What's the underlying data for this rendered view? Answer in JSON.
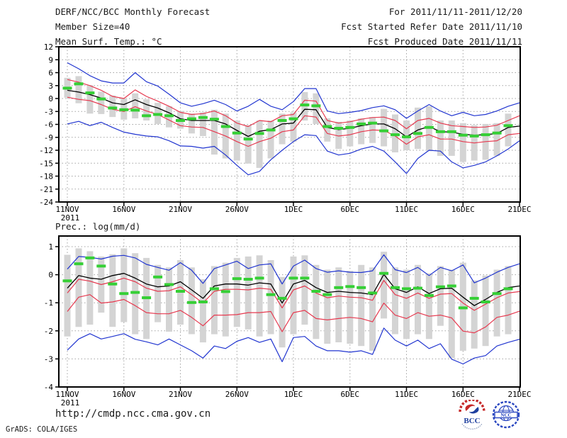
{
  "header": {
    "left": [
      "DERF/NCC/BCC Monthly Forecast",
      "Member Size=40"
    ],
    "right": [
      "For 2011/11/11-2011/12/20",
      "Fcst Started Refer Date 2011/11/10",
      "Fcst Produced Date 2011/11/11"
    ]
  },
  "footer": {
    "url": "http://cmdp.ncc.cma.gov.cn",
    "credit": "GrADS: COLA/IGES",
    "logos": [
      {
        "label": "BCC"
      },
      {
        "label": "NCC"
      }
    ]
  },
  "colors": {
    "blue": "#2135d0",
    "red": "#e6394f",
    "green": "#35cf35",
    "bar": "#d4d4d4",
    "grid": "#a3a3a3",
    "frame": "#000000"
  },
  "chart_data": [
    {
      "type": "line",
      "title": "Mean Surf. Temp.: °C",
      "ylabel": "Mean Surf. Temp. (°C)",
      "ymax": 12,
      "ymin": -24,
      "yticks": [
        12,
        9,
        6,
        3,
        0,
        -3,
        -6,
        -9,
        -12,
        -15,
        -18,
        -21,
        -24
      ],
      "grid": "dotted",
      "year_label": "2011",
      "xticks": [
        {
          "day": 1,
          "label": "11NOV"
        },
        {
          "day": 6,
          "label": "16NOV"
        },
        {
          "day": 11,
          "label": "21NOV"
        },
        {
          "day": 16,
          "label": "26NOV"
        },
        {
          "day": 21,
          "label": "1DEC"
        },
        {
          "day": 26,
          "label": "6DEC"
        },
        {
          "day": 31,
          "label": "11DEC"
        },
        {
          "day": 36,
          "label": "16DEC"
        },
        {
          "day": 41,
          "label": "21DEC"
        }
      ],
      "series": [
        {
          "name": "blue-upper-envelope",
          "color": "#2135d0",
          "width": 1.2,
          "values": [
            8.3,
            6.9,
            5.3,
            4.1,
            3.6,
            3.6,
            6.0,
            3.9,
            2.9,
            1.0,
            -1.0,
            -1.8,
            -1.2,
            -0.4,
            -1.4,
            -2.9,
            -1.8,
            -0.2,
            -1.8,
            -2.6,
            -0.7,
            2.3,
            2.3,
            -2.9,
            -3.5,
            -3.2,
            -2.8,
            -2.1,
            -1.7,
            -2.6,
            -4.6,
            -2.9,
            -1.4,
            -2.9,
            -4.0,
            -3.2,
            -4.0,
            -3.7,
            -2.9,
            -1.8,
            -1.0
          ]
        },
        {
          "name": "blue-lower-envelope",
          "color": "#2135d0",
          "width": 1.2,
          "values": [
            -5.9,
            -5.3,
            -6.3,
            -5.5,
            -6.7,
            -7.8,
            -8.3,
            -8.7,
            -8.9,
            -9.8,
            -11.0,
            -11.1,
            -11.5,
            -11.1,
            -13.1,
            -15.5,
            -17.7,
            -16.9,
            -14.2,
            -12.0,
            -10.0,
            -8.4,
            -8.6,
            -12.2,
            -13.1,
            -12.7,
            -11.7,
            -11.1,
            -12.2,
            -14.7,
            -17.4,
            -13.9,
            -12.0,
            -12.2,
            -14.7,
            -16.1,
            -15.5,
            -14.7,
            -13.3,
            -11.7,
            -9.8
          ]
        },
        {
          "name": "red-upper-spread",
          "color": "#e6394f",
          "width": 1.2,
          "values": [
            4.4,
            3.8,
            3.0,
            1.9,
            0.5,
            0.0,
            2.0,
            0.5,
            -0.6,
            -1.8,
            -3.2,
            -3.7,
            -3.5,
            -2.9,
            -4.0,
            -5.7,
            -6.5,
            -5.1,
            -5.4,
            -4.0,
            -3.7,
            -0.4,
            -0.6,
            -5.1,
            -5.7,
            -5.4,
            -4.8,
            -4.4,
            -4.3,
            -5.1,
            -7.0,
            -5.1,
            -4.6,
            -5.7,
            -6.3,
            -6.5,
            -6.7,
            -6.6,
            -6.2,
            -5.1,
            -4.0
          ]
        },
        {
          "name": "red-lower-spread",
          "color": "#e6394f",
          "width": 1.2,
          "values": [
            0.3,
            -0.2,
            -0.5,
            -1.4,
            -2.5,
            -3.0,
            -1.9,
            -2.9,
            -3.7,
            -5.0,
            -6.3,
            -6.6,
            -6.7,
            -7.7,
            -8.7,
            -10.0,
            -11.1,
            -10.0,
            -9.2,
            -7.7,
            -7.3,
            -4.0,
            -4.3,
            -8.1,
            -8.7,
            -8.4,
            -7.7,
            -7.3,
            -7.4,
            -8.7,
            -10.6,
            -8.9,
            -8.4,
            -9.4,
            -9.4,
            -10.0,
            -10.3,
            -10.0,
            -9.8,
            -8.4,
            -8.1
          ]
        },
        {
          "name": "ensemble-mean",
          "color": "#000000",
          "width": 1.3,
          "values": [
            1.9,
            1.5,
            0.9,
            0.1,
            -1.0,
            -1.4,
            -0.3,
            -1.4,
            -2.2,
            -3.3,
            -4.7,
            -5.1,
            -5.1,
            -5.1,
            -5.9,
            -7.4,
            -8.8,
            -7.6,
            -7.2,
            -5.9,
            -5.7,
            -2.5,
            -2.6,
            -6.7,
            -7.2,
            -6.9,
            -6.3,
            -5.9,
            -5.9,
            -7.0,
            -8.9,
            -7.3,
            -6.5,
            -7.7,
            -7.8,
            -8.3,
            -8.5,
            -8.4,
            -8.1,
            -6.7,
            -6.4
          ]
        }
      ],
      "bars": {
        "name": "member-spread-bar",
        "color": "#d4d4d4",
        "top": [
          4.8,
          5.2,
          3.1,
          1.6,
          0.7,
          0.0,
          1.2,
          -0.2,
          -1.0,
          -1.8,
          -2.9,
          -3.5,
          -3.2,
          -2.6,
          -3.5,
          -5.1,
          -6.2,
          -5.1,
          -5.1,
          -3.5,
          -3.2,
          1.5,
          1.2,
          -4.6,
          -5.4,
          -5.1,
          -4.6,
          -4.3,
          -2.4,
          -3.7,
          -5.1,
          -2.1,
          -1.8,
          -5.1,
          -5.1,
          -5.7,
          -6.2,
          -5.9,
          -5.7,
          -3.5
        ],
        "bottom": [
          0.2,
          -1.1,
          -3.5,
          -3.6,
          -4.3,
          -4.9,
          -4.6,
          -5.1,
          -5.9,
          -6.7,
          -7.0,
          -8.1,
          -8.7,
          -13.0,
          -13.9,
          -14.4,
          -15.1,
          -16.1,
          -13.9,
          -10.6,
          -10.0,
          -5.1,
          -5.9,
          -10.0,
          -11.7,
          -11.1,
          -10.6,
          -10.3,
          -11.1,
          -12.5,
          -12.0,
          -11.7,
          -12.2,
          -13.3,
          -13.3,
          -14.7,
          -14.4,
          -14.2,
          -13.3,
          -11.1
        ]
      },
      "dashes": {
        "name": "green-dash-marks",
        "color": "#35cf35",
        "values": [
          2.4,
          3.4,
          1.3,
          -0.1,
          -2.2,
          -2.6,
          -2.7,
          -4.0,
          -3.7,
          -4.0,
          -5.1,
          -4.7,
          -4.4,
          -4.8,
          -6.5,
          -8.0,
          -9.4,
          -8.1,
          -7.3,
          -5.1,
          -4.7,
          -1.5,
          -1.7,
          -6.5,
          -6.9,
          -6.7,
          -5.9,
          -5.7,
          -7.5,
          -8.4,
          -8.9,
          -8.1,
          -6.7,
          -7.7,
          -7.7,
          -8.5,
          -8.7,
          -8.4,
          -8.0,
          -6.3
        ]
      }
    },
    {
      "type": "line",
      "title": "Prec.: log(mm/d)",
      "ylabel": "Prec. log(mm/d)",
      "ymax": 1.38,
      "ymin": -4,
      "yticks": [
        1,
        0,
        -1,
        -2,
        -3,
        -4
      ],
      "grid": "dotted",
      "year_label": "2011",
      "xticks": [
        {
          "day": 1,
          "label": "11NOV"
        },
        {
          "day": 6,
          "label": "16NOV"
        },
        {
          "day": 11,
          "label": "21NOV"
        },
        {
          "day": 16,
          "label": "26NOV"
        },
        {
          "day": 21,
          "label": "1DEC"
        },
        {
          "day": 26,
          "label": "6DEC"
        },
        {
          "day": 31,
          "label": "11DEC"
        },
        {
          "day": 36,
          "label": "16DEC"
        },
        {
          "day": 41,
          "label": "21DEC"
        }
      ],
      "series": [
        {
          "name": "blue-upper-envelope",
          "color": "#2135d0",
          "width": 1.2,
          "values": [
            0.2,
            0.65,
            0.62,
            0.56,
            0.66,
            0.69,
            0.6,
            0.37,
            0.26,
            0.16,
            0.43,
            0.16,
            -0.31,
            0.22,
            0.35,
            0.48,
            0.22,
            0.35,
            0.39,
            -0.33,
            0.31,
            0.52,
            0.22,
            0.09,
            0.14,
            0.09,
            0.08,
            0.14,
            0.71,
            0.18,
            0.08,
            0.26,
            -0.03,
            0.26,
            0.14,
            0.35,
            -0.29,
            -0.12,
            0.09,
            0.26,
            0.39
          ]
        },
        {
          "name": "blue-lower-envelope",
          "color": "#2135d0",
          "width": 1.2,
          "values": [
            -2.69,
            -2.29,
            -2.1,
            -2.29,
            -2.2,
            -2.1,
            -2.3,
            -2.39,
            -2.5,
            -2.29,
            -2.5,
            -2.71,
            -2.97,
            -2.54,
            -2.63,
            -2.37,
            -2.24,
            -2.41,
            -2.29,
            -3.1,
            -2.24,
            -2.2,
            -2.54,
            -2.71,
            -2.71,
            -2.76,
            -2.71,
            -2.84,
            -1.9,
            -2.33,
            -2.54,
            -2.33,
            -2.63,
            -2.46,
            -3.01,
            -3.18,
            -2.97,
            -2.88,
            -2.54,
            -2.41,
            -2.3
          ]
        },
        {
          "name": "red-upper-spread",
          "color": "#e6394f",
          "width": 1.2,
          "values": [
            -0.65,
            -0.16,
            -0.23,
            -0.35,
            -0.25,
            -0.12,
            -0.25,
            -0.48,
            -0.59,
            -0.57,
            -0.43,
            -0.71,
            -1.01,
            -0.59,
            -0.52,
            -0.52,
            -0.54,
            -0.48,
            -0.52,
            -1.18,
            -0.54,
            -0.4,
            -0.65,
            -0.82,
            -0.76,
            -0.8,
            -0.82,
            -0.91,
            -0.2,
            -0.71,
            -0.84,
            -0.65,
            -0.84,
            -0.69,
            -0.67,
            -1.01,
            -1.27,
            -1.05,
            -0.82,
            -0.65,
            -0.6
          ]
        },
        {
          "name": "red-lower-spread",
          "color": "#e6394f",
          "width": 1.2,
          "values": [
            -1.31,
            -0.8,
            -0.71,
            -1.01,
            -0.97,
            -0.88,
            -1.1,
            -1.35,
            -1.39,
            -1.39,
            -1.27,
            -1.52,
            -1.82,
            -1.44,
            -1.44,
            -1.42,
            -1.35,
            -1.35,
            -1.31,
            -2.03,
            -1.35,
            -1.27,
            -1.56,
            -1.61,
            -1.56,
            -1.52,
            -1.56,
            -1.68,
            -1.01,
            -1.44,
            -1.56,
            -1.35,
            -1.48,
            -1.44,
            -1.54,
            -2.01,
            -2.07,
            -1.86,
            -1.52,
            -1.44,
            -1.3
          ]
        },
        {
          "name": "ensemble-mean",
          "color": "#000000",
          "width": 1.3,
          "values": [
            -0.48,
            -0.03,
            -0.12,
            -0.16,
            -0.03,
            0.05,
            -0.12,
            -0.33,
            -0.43,
            -0.4,
            -0.25,
            -0.54,
            -0.84,
            -0.4,
            -0.33,
            -0.33,
            -0.37,
            -0.29,
            -0.33,
            -1.01,
            -0.33,
            -0.2,
            -0.46,
            -0.63,
            -0.59,
            -0.63,
            -0.65,
            -0.71,
            0.01,
            -0.5,
            -0.63,
            -0.43,
            -0.67,
            -0.5,
            -0.48,
            -0.8,
            -1.1,
            -0.88,
            -0.63,
            -0.46,
            -0.4
          ]
        }
      ],
      "bars": {
        "name": "member-spread-bar",
        "color": "#d4d4d4",
        "top": [
          0.71,
          0.94,
          0.84,
          0.65,
          0.73,
          0.94,
          0.77,
          0.6,
          0.35,
          0.26,
          0.52,
          0.26,
          -0.16,
          0.31,
          0.43,
          0.6,
          0.65,
          0.69,
          0.52,
          -0.08,
          0.65,
          0.69,
          0.35,
          0.18,
          0.26,
          0.14,
          0.35,
          0.26,
          0.82,
          0.26,
          0.18,
          0.35,
          0.05,
          0.31,
          0.18,
          0.43,
          -0.2,
          -0.03,
          0.18,
          0.31
        ],
        "bottom": [
          -2.2,
          -1.86,
          -1.78,
          -1.35,
          -1.86,
          -1.69,
          -2.12,
          -2.29,
          -1.69,
          -2.03,
          -1.78,
          -2.12,
          -2.41,
          -2.12,
          -2.2,
          -1.86,
          -1.95,
          -2.2,
          -2.12,
          -2.59,
          -2.12,
          -1.78,
          -2.29,
          -2.46,
          -2.41,
          -2.46,
          -2.54,
          -2.71,
          -1.56,
          -2.12,
          -2.29,
          -2.12,
          -2.29,
          -1.82,
          -2.97,
          -2.71,
          -2.63,
          -2.54,
          -2.2,
          -2.12
        ]
      },
      "dashes": {
        "name": "green-dash-marks",
        "color": "#35cf35",
        "values": [
          -0.22,
          0.39,
          0.6,
          0.31,
          -0.33,
          -0.67,
          -0.63,
          -0.82,
          -0.08,
          -0.35,
          -0.59,
          -0.99,
          -0.97,
          -0.5,
          -0.6,
          -0.14,
          -0.16,
          -0.12,
          -0.71,
          -0.84,
          -0.12,
          -0.12,
          -0.59,
          -0.71,
          -0.46,
          -0.42,
          -0.46,
          -0.65,
          0.05,
          -0.46,
          -0.5,
          -0.48,
          -0.74,
          -0.43,
          -0.4,
          -1.18,
          -0.84,
          -0.97,
          -0.67,
          -0.5
        ]
      }
    }
  ]
}
